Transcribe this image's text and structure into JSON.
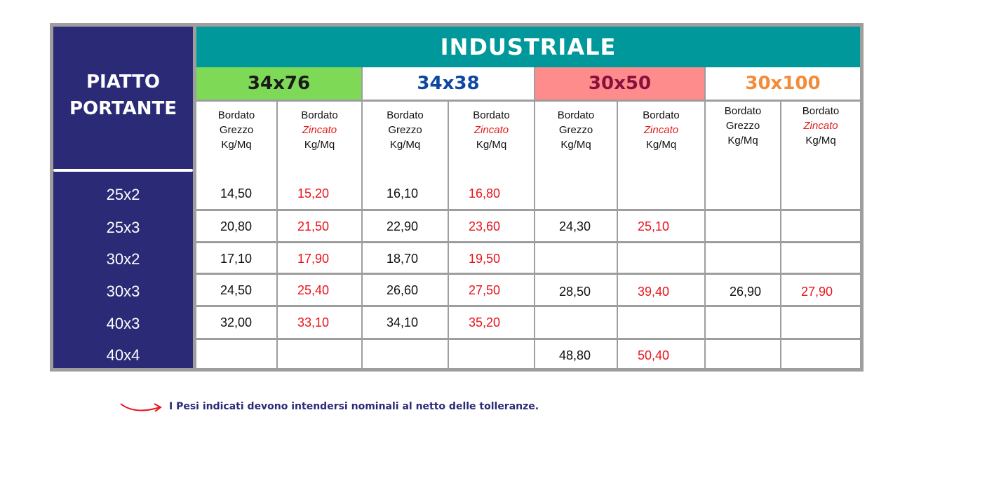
{
  "table": {
    "row_header_title_line1": "PIATTO",
    "row_header_title_line2": "PORTANTE",
    "section_title": "INDUSTRIALE",
    "groups": [
      {
        "label": "34x76",
        "bg": "#7ed957",
        "fg": "#1a1a1a"
      },
      {
        "label": "34x38",
        "bg": "#ffffff",
        "fg": "#0d47a1"
      },
      {
        "label": "30x50",
        "bg": "#ff8c8c",
        "fg": "#8a0f3c"
      },
      {
        "label": "30x100",
        "bg": "#ffffff",
        "fg": "#f28c3a"
      }
    ],
    "subheaders": {
      "raw": {
        "line1": "Bordato",
        "line2": "Grezzo",
        "line3": "Kg/Mq"
      },
      "zinc": {
        "line1": "Bordato",
        "line2": "Zincato",
        "line3": "Kg/Mq"
      }
    },
    "rows": [
      {
        "label": "25x2",
        "values": [
          "14,50",
          "15,20",
          "16,10",
          "16,80",
          "",
          "",
          "",
          ""
        ]
      },
      {
        "label": "25x3",
        "values": [
          "20,80",
          "21,50",
          "22,90",
          "23,60",
          "24,30",
          "25,10",
          "",
          ""
        ]
      },
      {
        "label": "30x2",
        "values": [
          "17,10",
          "17,90",
          "18,70",
          "19,50",
          "",
          "",
          "",
          ""
        ]
      },
      {
        "label": "30x3",
        "values": [
          "24,50",
          "25,40",
          "26,60",
          "27,50",
          "28,50",
          "39,40",
          "26,90",
          "27,90"
        ]
      },
      {
        "label": "40x3",
        "values": [
          "32,00",
          "33,10",
          "34,10",
          "35,20",
          "",
          "",
          "",
          ""
        ]
      },
      {
        "label": "40x4",
        "values": [
          "",
          "",
          "",
          "",
          "48,80",
          "50,40",
          "",
          ""
        ]
      }
    ]
  },
  "note": {
    "text": "I Pesi indicati devono intendersi nominali al netto delle tolleranze.",
    "icon": "curved-arrow-icon"
  },
  "colors": {
    "navy": "#2b2a77",
    "teal": "#00989a",
    "red_value": "#e8141a",
    "grid": "#9e9e9e"
  }
}
